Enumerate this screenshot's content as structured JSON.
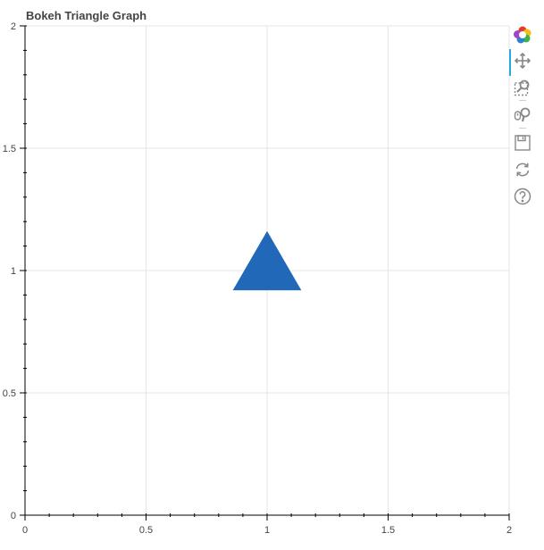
{
  "chart_data": {
    "type": "scatter",
    "marker": "triangle",
    "title": "Bokeh Triangle Graph",
    "x": [
      1
    ],
    "y": [
      1
    ],
    "marker_color": "#2268b9",
    "xlim": [
      0,
      2
    ],
    "ylim": [
      0,
      2
    ],
    "xticks": [
      0,
      0.5,
      1,
      1.5,
      2
    ],
    "yticks": [
      0,
      0.5,
      1,
      1.5,
      2
    ],
    "xtick_labels": [
      "0",
      "0.5",
      "1",
      "1.5",
      "2"
    ],
    "ytick_labels": [
      "0",
      "0.5",
      "1",
      "1.5",
      "2"
    ],
    "grid": true
  },
  "toolbar": {
    "tools": [
      {
        "name": "bokeh-logo",
        "icon": "bokeh-logo-icon",
        "active": false
      },
      {
        "name": "pan",
        "icon": "pan-icon",
        "active": true
      },
      {
        "name": "box-zoom",
        "icon": "box-zoom-icon",
        "active": false
      },
      {
        "name": "wheel-zoom",
        "icon": "wheel-zoom-icon",
        "active": false
      },
      {
        "name": "save",
        "icon": "save-icon",
        "active": false
      },
      {
        "name": "reset",
        "icon": "reset-icon",
        "active": false
      },
      {
        "name": "help",
        "icon": "help-icon",
        "active": false
      }
    ]
  }
}
